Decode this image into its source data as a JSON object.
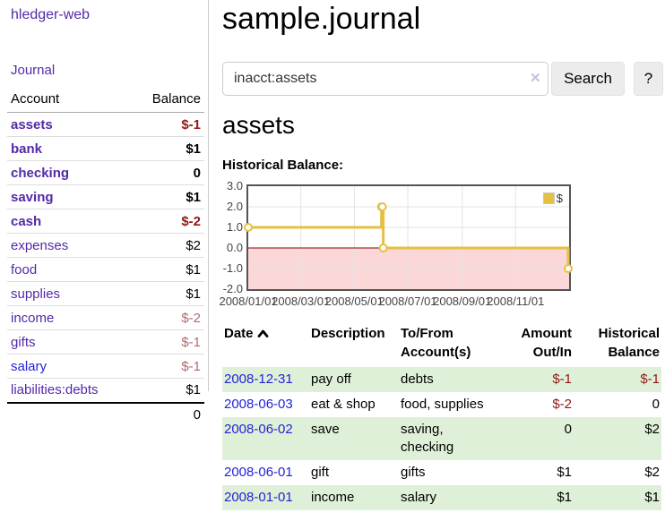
{
  "app": {
    "brand": "hledger-web",
    "nav_journal": "Journal"
  },
  "sidebar": {
    "header": {
      "account": "Account",
      "balance": "Balance"
    },
    "accounts": [
      {
        "name": "assets",
        "balance": "$-1",
        "balance_class": "neg-strong",
        "name_class": "purple"
      },
      {
        "name": "bank",
        "balance": "$1",
        "balance_class": "pos",
        "name_class": "purple"
      },
      {
        "name": "checking",
        "balance": "0",
        "balance_class": "pos",
        "name_class": "purple"
      },
      {
        "name": "saving",
        "balance": "$1",
        "balance_class": "pos",
        "name_class": "purple"
      },
      {
        "name": "cash",
        "balance": "$-2",
        "balance_class": "neg-strong",
        "name_class": "purple"
      },
      {
        "name": "expenses",
        "balance": "$2",
        "balance_class": "pos",
        "name_class": "purple"
      },
      {
        "name": "food",
        "balance": "$1",
        "balance_class": "pos",
        "name_class": "purple"
      },
      {
        "name": "supplies",
        "balance": "$1",
        "balance_class": "pos",
        "name_class": "purple"
      },
      {
        "name": "income",
        "balance": "$-2",
        "balance_class": "neg-light",
        "name_class": "purple"
      },
      {
        "name": "gifts",
        "balance": "$-1",
        "balance_class": "neg-light",
        "name_class": "purple"
      },
      {
        "name": "salary",
        "balance": "$-1",
        "balance_class": "neg-light",
        "name_class": "blue"
      },
      {
        "name": "liabilities:debts",
        "balance": "$1",
        "balance_class": "pos",
        "name_class": "purple"
      }
    ],
    "total": "0"
  },
  "main": {
    "title": "sample.journal",
    "search": {
      "value": "inacct:assets",
      "clear_icon": "✕",
      "button_label": "Search",
      "help_label": "?"
    },
    "account_heading": "assets",
    "chart_heading": "Historical Balance:"
  },
  "chart_data": {
    "type": "line",
    "step": true,
    "title": "Historical Balance",
    "xlim": [
      "2008-01-01",
      "2009-01-01"
    ],
    "ylim": [
      -2,
      3
    ],
    "y_ticks": [
      {
        "value": 3.0,
        "label": "3.0"
      },
      {
        "value": 2.0,
        "label": "2.0"
      },
      {
        "value": 1.0,
        "label": "1.0"
      },
      {
        "value": 0.0,
        "label": "0.0"
      },
      {
        "value": -1.0,
        "label": "-1.0"
      },
      {
        "value": -2.0,
        "label": "-2.0"
      }
    ],
    "x_ticks": [
      {
        "date": "2008-01-01",
        "label": "2008/01/01"
      },
      {
        "date": "2008-03-01",
        "label": "2008/03/01"
      },
      {
        "date": "2008-05-01",
        "label": "2008/05/01"
      },
      {
        "date": "2008-07-01",
        "label": "2008/07/01"
      },
      {
        "date": "2008-09-01",
        "label": "2008/09/01"
      },
      {
        "date": "2008-11-01",
        "label": "2008/11/01"
      }
    ],
    "series": [
      {
        "name": "$",
        "color": "#E6C043",
        "points": [
          [
            "2008-01-01",
            1
          ],
          [
            "2008-06-01",
            2
          ],
          [
            "2008-06-02",
            2
          ],
          [
            "2008-06-03",
            0
          ],
          [
            "2008-12-31",
            -1
          ]
        ]
      }
    ],
    "legend_position": "top-right",
    "grid": true,
    "grid_color": "#E3E3E3",
    "zero_line_color": "#8B0000",
    "negative_region_color": "#FBD7D7",
    "border_color": "#545454"
  },
  "register": {
    "headers": {
      "date": "Date",
      "description": "Description",
      "tofrom": "To/From Account(s)",
      "amount": "Amount Out/In",
      "balance": "Historical Balance"
    },
    "rows": [
      {
        "date": "2008-12-31",
        "description": "pay off",
        "accounts": "debts",
        "amount": "$-1",
        "amount_class": "amt-neg",
        "balance": "$-1",
        "balance_class": "amt-neg"
      },
      {
        "date": "2008-06-03",
        "description": "eat & shop",
        "accounts": "food, supplies",
        "amount": "$-2",
        "amount_class": "amt-neg",
        "balance": "0",
        "balance_class": "amt-pos"
      },
      {
        "date": "2008-06-02",
        "description": "save",
        "accounts": "saving, checking",
        "amount": "0",
        "amount_class": "amt-pos",
        "balance": "$2",
        "balance_class": "amt-pos"
      },
      {
        "date": "2008-06-01",
        "description": "gift",
        "accounts": "gifts",
        "amount": "$1",
        "amount_class": "amt-pos",
        "balance": "$2",
        "balance_class": "amt-pos"
      },
      {
        "date": "2008-01-01",
        "description": "income",
        "accounts": "salary",
        "amount": "$1",
        "amount_class": "amt-pos",
        "balance": "$1",
        "balance_class": "amt-pos"
      }
    ]
  },
  "colors": {
    "link_purple": "#5429A8",
    "link_blue": "#2323D7",
    "negative_strong": "#941616",
    "negative_light": "#B36A6A",
    "row_stripe_green": "#DFF0D8",
    "series_gold": "#E6C043",
    "chart_negative_pink": "#FBD7D7",
    "zero_line": "#8B0000",
    "button_bg": "#ECECEC"
  }
}
